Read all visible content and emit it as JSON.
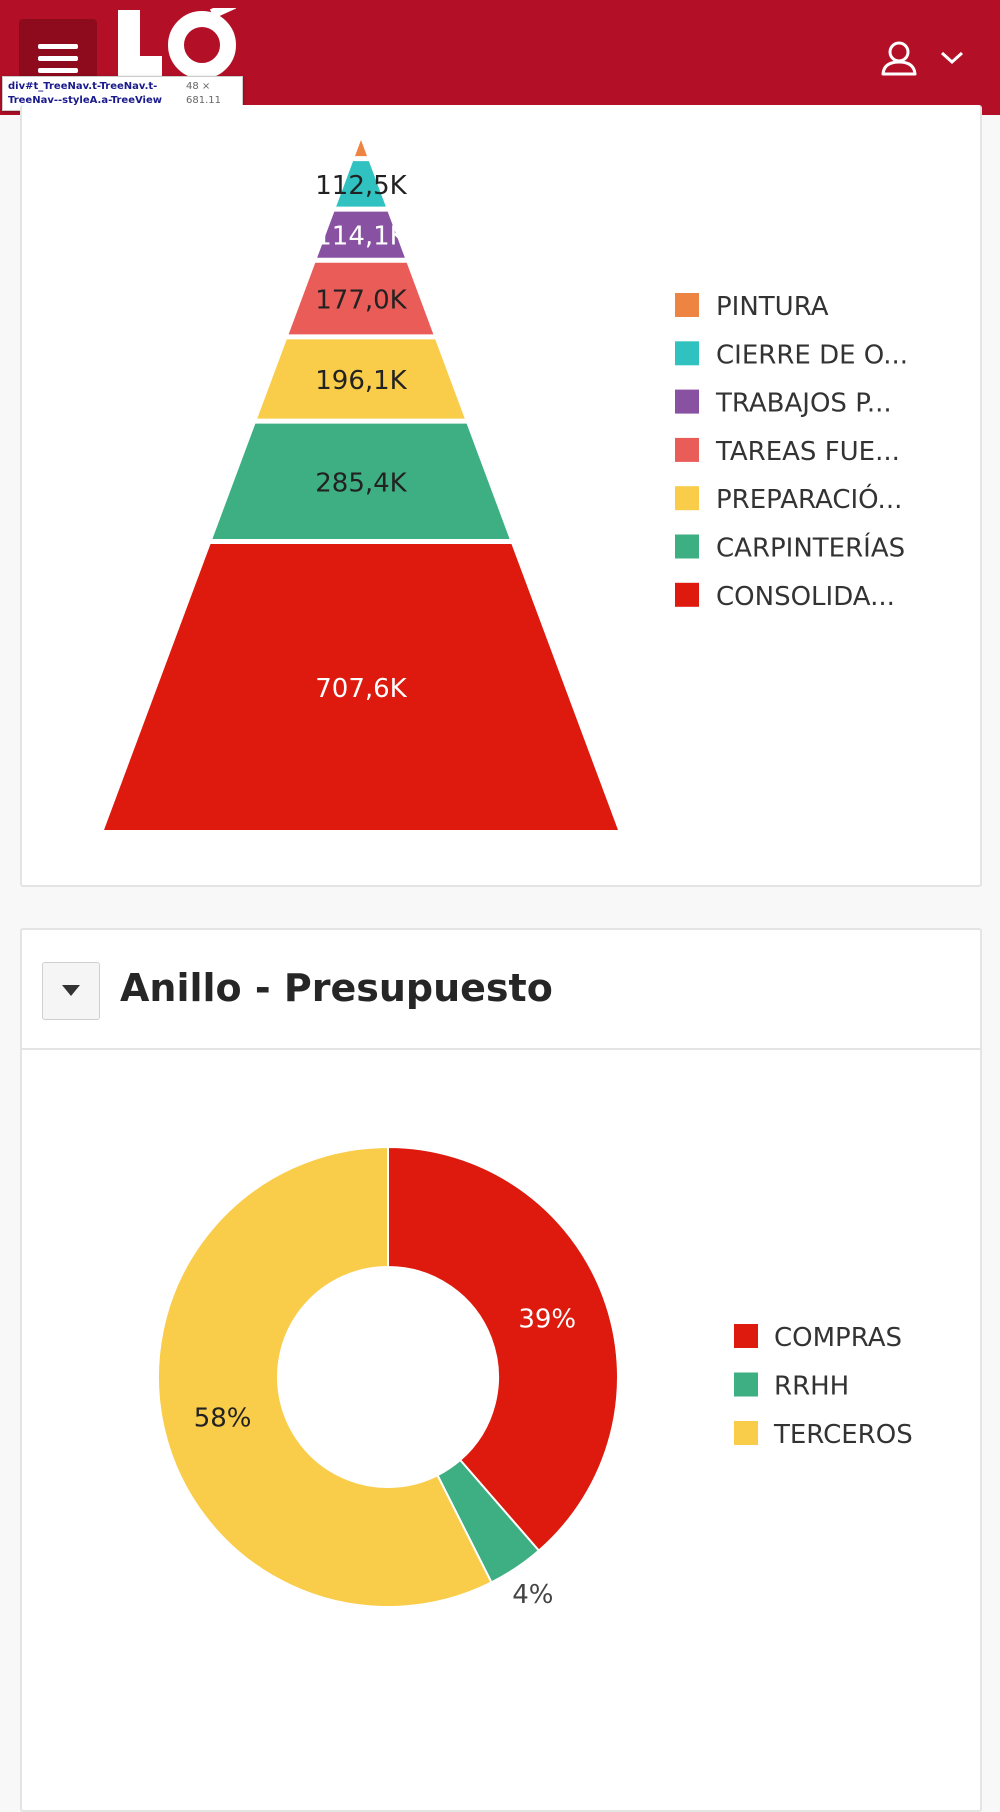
{
  "header": {
    "logo_text": "LØ",
    "tooltip": {
      "selector": "div#t_TreeNav.t-TreeNav.t-TreeNav--styleA.a-TreeView",
      "dims": "48 × 681.11"
    },
    "icons": {
      "menu": "hamburger-icon",
      "user": "user-icon",
      "dropdown": "chevron-down-icon"
    }
  },
  "pyramid_card": {
    "chart_data": {
      "type": "pyramid",
      "categories": [
        "PINTURA",
        "CIERRE DE O...",
        "TRABAJOS P...",
        "TAREAS FUE...",
        "PREPARACIÓ...",
        "CARPINTERÍAS",
        "CONSOLIDA..."
      ],
      "labels": [
        "",
        "112,5K",
        "114,1K",
        "177,0K",
        "196,1K",
        "285,4K",
        "707,6K"
      ],
      "values": [
        40000,
        112500,
        114100,
        177000,
        196100,
        285400,
        707600
      ],
      "colors": [
        "#ed8442",
        "#2fc2c0",
        "#8851a2",
        "#ea5c57",
        "#f9cc49",
        "#3daf83",
        "#dd1a0d"
      ],
      "label_colors": [
        "#222222",
        "#222222",
        "#ffffff",
        "#222222",
        "#222222",
        "#222222",
        "#ffffff"
      ],
      "legend_position": "right"
    }
  },
  "donut_card": {
    "title": "Anillo - Presupuesto",
    "toggle_icon": "caret-down-icon",
    "chart_data": {
      "type": "pie",
      "categories": [
        "COMPRAS",
        "RRHH",
        "TERCEROS"
      ],
      "values": [
        39,
        4,
        58
      ],
      "labels": [
        "39%",
        "4%",
        "58%"
      ],
      "colors": [
        "#dd1a0d",
        "#3daf83",
        "#f9cc49"
      ],
      "label_colors": [
        "#ffffff",
        "#444444",
        "#222222"
      ],
      "legend_position": "right"
    }
  }
}
